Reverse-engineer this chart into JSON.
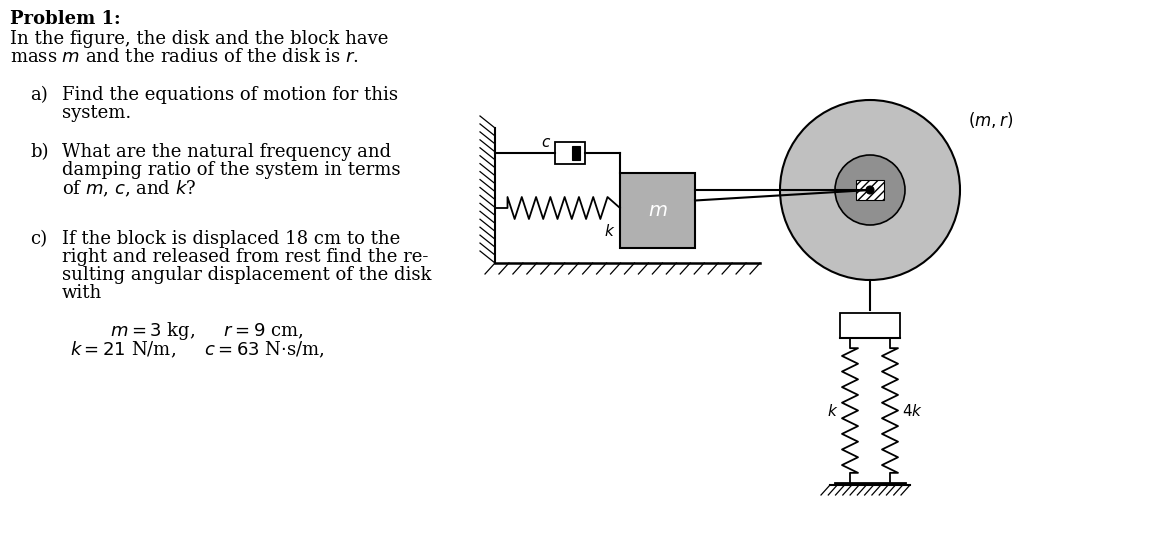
{
  "bg_color": "#ffffff",
  "text_color": "#000000",
  "title": "Problem 1:",
  "line1": "In the figure, the disk and the block have",
  "line2": "mass $m$ and the radius of the disk is $r$.",
  "part_a_label": "a)",
  "part_a_text1": "Find the equations of motion for this",
  "part_a_text2": "system.",
  "part_b_label": "b)",
  "part_b_text1": "What are the natural frequency and",
  "part_b_text2": "damping ratio of the system in terms",
  "part_b_text3": "of $m$, $c$, and $k$?",
  "part_c_label": "c)",
  "part_c_text1": "If the block is displaced 18 cm to the",
  "part_c_text2": "right and released from rest find the re-",
  "part_c_text3": "sulting angular displacement of the disk",
  "part_c_text4": "with",
  "eq1": "$m = 3$ kg,     $r = 9$ cm,",
  "eq2": "$k = 21$ N/m,     $c = 63$ N$\\cdot$s/m,",
  "disk_outer_color": "#c0c0c0",
  "disk_hub_color": "#909090",
  "block_color": "#b0b0b0"
}
